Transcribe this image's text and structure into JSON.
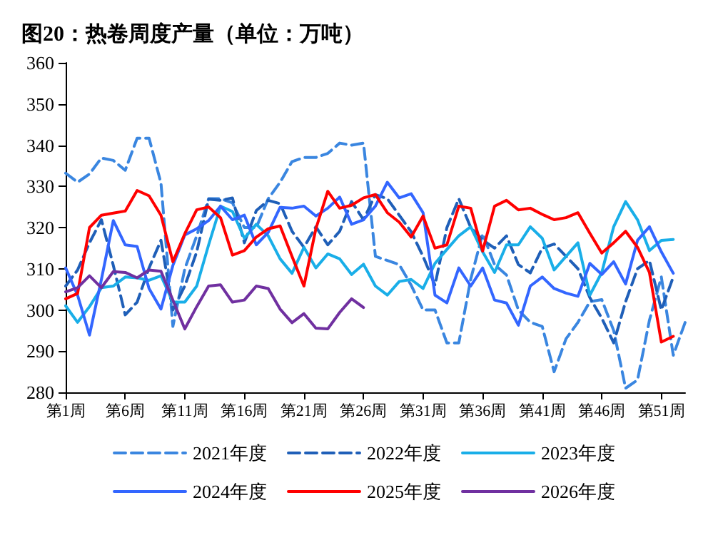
{
  "chart_data": {
    "type": "line",
    "title": "图20：热卷周度产量（单位：万吨）",
    "categories": [
      "第1周",
      null,
      null,
      null,
      null,
      "第6周",
      null,
      null,
      null,
      null,
      "第11周",
      null,
      null,
      null,
      null,
      "第16周",
      null,
      null,
      null,
      null,
      "第21周",
      null,
      null,
      null,
      null,
      "第26周",
      null,
      null,
      null,
      null,
      "第31周",
      null,
      null,
      null,
      null,
      "第36周",
      null,
      null,
      null,
      null,
      "第41周",
      null,
      null,
      null,
      null,
      "第46周",
      null,
      null,
      null,
      null,
      "第51周",
      null,
      null
    ],
    "ylim": [
      280,
      360
    ],
    "yticks": [
      280,
      290,
      300,
      310,
      320,
      330,
      340,
      350,
      360
    ],
    "grid": false,
    "legend": "bottom",
    "marker": "none",
    "series": [
      {
        "name": "2021年度",
        "color": "#3a86e0",
        "line_style": "dashed",
        "values": [
          333.2,
          331,
          333,
          336.9,
          336.3,
          333.9,
          341.7,
          341.7,
          330.8,
          296,
          310,
          318,
          327,
          327,
          326,
          320,
          320,
          327,
          331,
          336,
          337,
          337,
          338,
          340.5,
          340,
          340.5,
          313,
          312,
          311,
          306,
          300,
          300,
          292,
          292,
          307.5,
          318.5,
          311,
          308.5,
          300,
          297,
          296,
          285,
          293,
          297,
          302,
          302.5,
          295,
          281,
          283,
          297.5,
          308,
          289,
          297
        ]
      },
      {
        "name": "2022年度",
        "color": "#1f5fb8",
        "line_style": "dashed",
        "values": [
          305.8,
          309.7,
          316.3,
          321.9,
          310.8,
          298.8,
          301.9,
          310.2,
          316.9,
          300,
          305.8,
          314.1,
          326.9,
          326.6,
          327.2,
          316.3,
          324.1,
          326.6,
          325.8,
          319.1,
          315.2,
          320.2,
          315.8,
          319.1,
          326.3,
          321.9,
          328,
          327,
          323,
          319,
          313,
          306,
          320,
          327,
          320,
          317,
          315,
          318,
          311,
          309,
          315,
          316,
          313,
          310,
          303,
          298,
          292,
          302,
          310,
          312,
          300,
          308,
          null
        ]
      },
      {
        "name": "2023年度",
        "color": "#19aee8",
        "line_style": "solid",
        "values": [
          301,
          297,
          300.8,
          305.4,
          305.8,
          308,
          307.8,
          307.2,
          308.3,
          301.9,
          301.9,
          305.8,
          315.8,
          325.2,
          323.9,
          317.4,
          320.8,
          318,
          312.4,
          308.9,
          315.2,
          310.2,
          313.6,
          312.4,
          308.6,
          311.1,
          305.8,
          303.6,
          306.9,
          307.4,
          305.2,
          311.3,
          314.7,
          318,
          320.2,
          314.1,
          309.1,
          315.8,
          315.8,
          320.2,
          317.4,
          309.7,
          313,
          316.3,
          303.6,
          309.1,
          320.2,
          326.3,
          321.9,
          314.4,
          316.9,
          317.1,
          null
        ]
      },
      {
        "name": "2024年度",
        "color": "#3366ff",
        "line_style": "solid",
        "values": [
          310.2,
          303.6,
          293.9,
          307.4,
          321.7,
          315.8,
          315.4,
          305.2,
          300.2,
          310.8,
          318.2,
          319.7,
          321.7,
          325.2,
          321.9,
          323,
          315.8,
          318.8,
          324.9,
          324.7,
          325.2,
          322.8,
          324.7,
          327.4,
          320.8,
          321.9,
          325.2,
          331,
          327.2,
          328.2,
          323.6,
          303.6,
          301.7,
          310.2,
          305.8,
          310.2,
          302.4,
          301.7,
          296.3,
          305.8,
          308,
          305.2,
          304.1,
          303.3,
          311.3,
          308.6,
          311.7,
          306.3,
          316.9,
          320.2,
          314.1,
          308.9,
          null
        ]
      },
      {
        "name": "2025年度",
        "color": "#ff0000",
        "line_style": "solid",
        "values": [
          302.7,
          304,
          320,
          323,
          323.5,
          324,
          329,
          327.7,
          323,
          311.7,
          318.5,
          324.3,
          325,
          322.4,
          313.3,
          314.4,
          317.7,
          319.7,
          320.4,
          313,
          305.8,
          319.7,
          328.8,
          324.7,
          325.4,
          327.2,
          328,
          323.6,
          321.3,
          317.7,
          322.8,
          315,
          315.8,
          325.2,
          324.7,
          314.3,
          325.2,
          326.6,
          324.3,
          324.7,
          323.2,
          321.9,
          322.4,
          323.6,
          318.6,
          313.8,
          316.3,
          319.1,
          315.2,
          309.1,
          292.2,
          293.6,
          null
        ]
      },
      {
        "name": "2026年度",
        "color": "#7030a0",
        "line_style": "solid",
        "values": [
          304.4,
          305.4,
          308.3,
          305.4,
          309.3,
          309.1,
          307.8,
          309.7,
          309.4,
          302.4,
          295.4,
          300.8,
          305.8,
          306.1,
          301.9,
          302.4,
          305.8,
          305.2,
          300.2,
          296.9,
          299.1,
          295.6,
          295.4,
          299.4,
          302.7,
          300.6,
          null,
          null,
          null,
          null,
          null,
          null,
          null,
          null,
          null,
          null,
          null,
          null,
          null,
          null,
          null,
          null,
          null,
          null,
          null,
          null,
          null,
          null,
          null,
          null,
          null,
          null,
          null
        ]
      }
    ]
  }
}
